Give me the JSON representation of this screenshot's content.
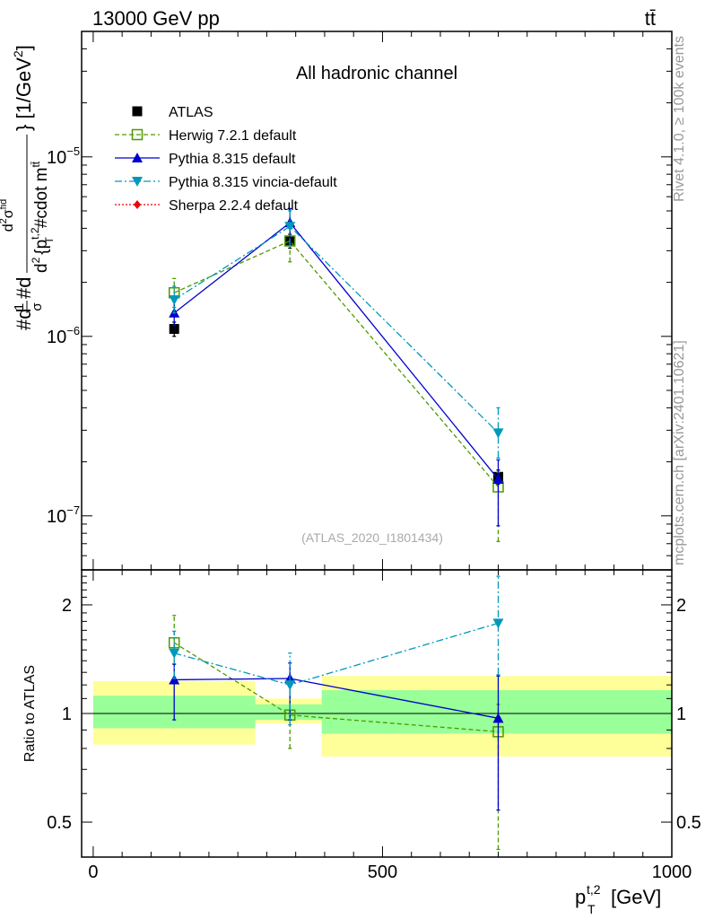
{
  "header": {
    "energy_label": "13000 GeV pp",
    "process_label": "tt̄",
    "side_label_top": "Rivet 4.1.0, ≥ 100k events",
    "side_label_bottom": "mcplots.cern.ch [arXiv:2401.10621]",
    "analysis_label": "(ATLAS_2020_I1801434)"
  },
  "chart_data": [
    {
      "panel": "main",
      "type": "scatter",
      "title": "All hadronic channel",
      "ylabel": "#d1/σ#d d²σᶠⁱᵈ / d²{p_T^{t,2} #cdot m^{tt̄}} [1/GeV²]",
      "ylabel_parts": {
        "left": "#d",
        "frac_num": "1",
        "frac_den": "σ",
        "mid": "#d",
        "num": "d",
        "num_sup": "2",
        "num_sigma": "σ",
        "num_sigma_sup": "fid",
        "den": "d",
        "den_sup": "2",
        "den_body": "{p",
        "den_pt_sup": "t,2",
        "den_pt_sub": "T",
        "den_tail": "#cdot m",
        "den_tail_sup": "tt̄",
        "units": "} [1/GeV",
        "units_sup": "2",
        "units_close": "]"
      },
      "yscale": "log",
      "ylim": [
        5e-08,
        5e-05
      ],
      "xlim": [
        -20,
        1000
      ],
      "y_tick_labels": [
        {
          "value": 1e-07,
          "base": "10",
          "exp": "−7"
        },
        {
          "value": 1e-06,
          "base": "10",
          "exp": "−6"
        },
        {
          "value": 1e-05,
          "base": "10",
          "exp": "−5"
        }
      ],
      "x": [
        140,
        340,
        700
      ],
      "series": [
        {
          "name": "ATLAS",
          "color": "#000000",
          "marker": "square-filled",
          "line": "none",
          "values": [
            1.1e-06,
            3.4e-06,
            1.65e-07
          ],
          "err_lo": [
            1e-07,
            3e-07,
            1.5e-08
          ],
          "err_hi": [
            1e-07,
            3e-07,
            1.5e-08
          ]
        },
        {
          "name": "Herwig 7.2.1 default",
          "color": "#4d9a00",
          "marker": "square-open",
          "line": "dashed",
          "values": [
            1.75e-06,
            3.4e-06,
            1.45e-07
          ],
          "err_lo": [
            3e-07,
            8e-07,
            7.3e-08
          ],
          "err_hi": [
            3.5e-07,
            8e-07,
            3e-08
          ]
        },
        {
          "name": "Pythia 8.315 default",
          "color": "#0000cc",
          "marker": "triangle-up",
          "line": "solid",
          "values": [
            1.35e-06,
            4.3e-06,
            1.6e-07
          ],
          "err_lo": [
            2e-07,
            1e-06,
            7.2e-08
          ],
          "err_hi": [
            2.5e-07,
            8.5e-07,
            4.5e-08
          ]
        },
        {
          "name": "Pythia 8.315 vincia-default",
          "color": "#0099bb",
          "marker": "triangle-down",
          "line": "dashdot",
          "values": [
            1.6e-06,
            4.1e-06,
            2.9e-07
          ],
          "err_lo": [
            2.5e-07,
            9e-07,
            8e-08
          ],
          "err_hi": [
            3e-07,
            9e-07,
            1.1e-07
          ]
        },
        {
          "name": "Sherpa 2.2.4 default",
          "color": "#ee0000",
          "marker": "diamond",
          "line": "dotted",
          "values": [],
          "err_lo": [],
          "err_hi": []
        }
      ],
      "legend": "top-left"
    },
    {
      "panel": "ratio",
      "type": "scatter",
      "ylabel": "Ratio to ATLAS",
      "xlabel": "p_T^{t,2} [GeV]",
      "xlabel_parts": {
        "p": "p",
        "sup": "t,2",
        "sub": "T",
        "units": "[GeV]"
      },
      "yscale": "log",
      "ylim": [
        0.4,
        2.5
      ],
      "xlim": [
        -20,
        1000
      ],
      "y_ticks": [
        0.5,
        1,
        2
      ],
      "y_tick_labels": [
        "0.5",
        "1",
        "2"
      ],
      "x_ticks": [
        0,
        500,
        1000
      ],
      "x_tick_labels": [
        "0",
        "500",
        "1000"
      ],
      "bands": [
        {
          "x0": 0,
          "x1": 280,
          "inner": [
            0.91,
            1.12
          ],
          "outer": [
            0.82,
            1.23
          ]
        },
        {
          "x0": 280,
          "x1": 395,
          "inner": [
            0.96,
            1.06
          ],
          "outer": [
            0.94,
            1.1
          ]
        },
        {
          "x0": 395,
          "x1": 1000,
          "inner": [
            0.88,
            1.16
          ],
          "outer": [
            0.76,
            1.27
          ]
        }
      ],
      "band_colors": {
        "inner": "#99ff99",
        "outer": "#ffff99"
      },
      "x": [
        140,
        340,
        700
      ],
      "series": [
        {
          "name": "Herwig 7.2.1 default",
          "color": "#4d9a00",
          "marker": "square-open",
          "line": "dashed",
          "values": [
            1.57,
            0.99,
            0.89
          ],
          "err_lo": [
            0.2,
            0.19,
            0.47
          ],
          "err_hi": [
            0.3,
            0.27,
            0.17
          ]
        },
        {
          "name": "Pythia 8.315 default",
          "color": "#0000cc",
          "marker": "triangle-up",
          "line": "solid",
          "values": [
            1.24,
            1.25,
            0.97
          ],
          "err_lo": [
            0.28,
            0.29,
            0.43
          ],
          "err_hi": [
            0.13,
            0.13,
            0.3
          ]
        },
        {
          "name": "Pythia 8.315 vincia-default",
          "color": "#0099bb",
          "marker": "triangle-down",
          "line": "dashdot",
          "values": [
            1.47,
            1.2,
            1.78
          ],
          "err_lo": [
            0.22,
            0.27,
            0.5
          ],
          "err_hi": [
            0.22,
            0.27,
            0.62
          ]
        }
      ]
    }
  ]
}
